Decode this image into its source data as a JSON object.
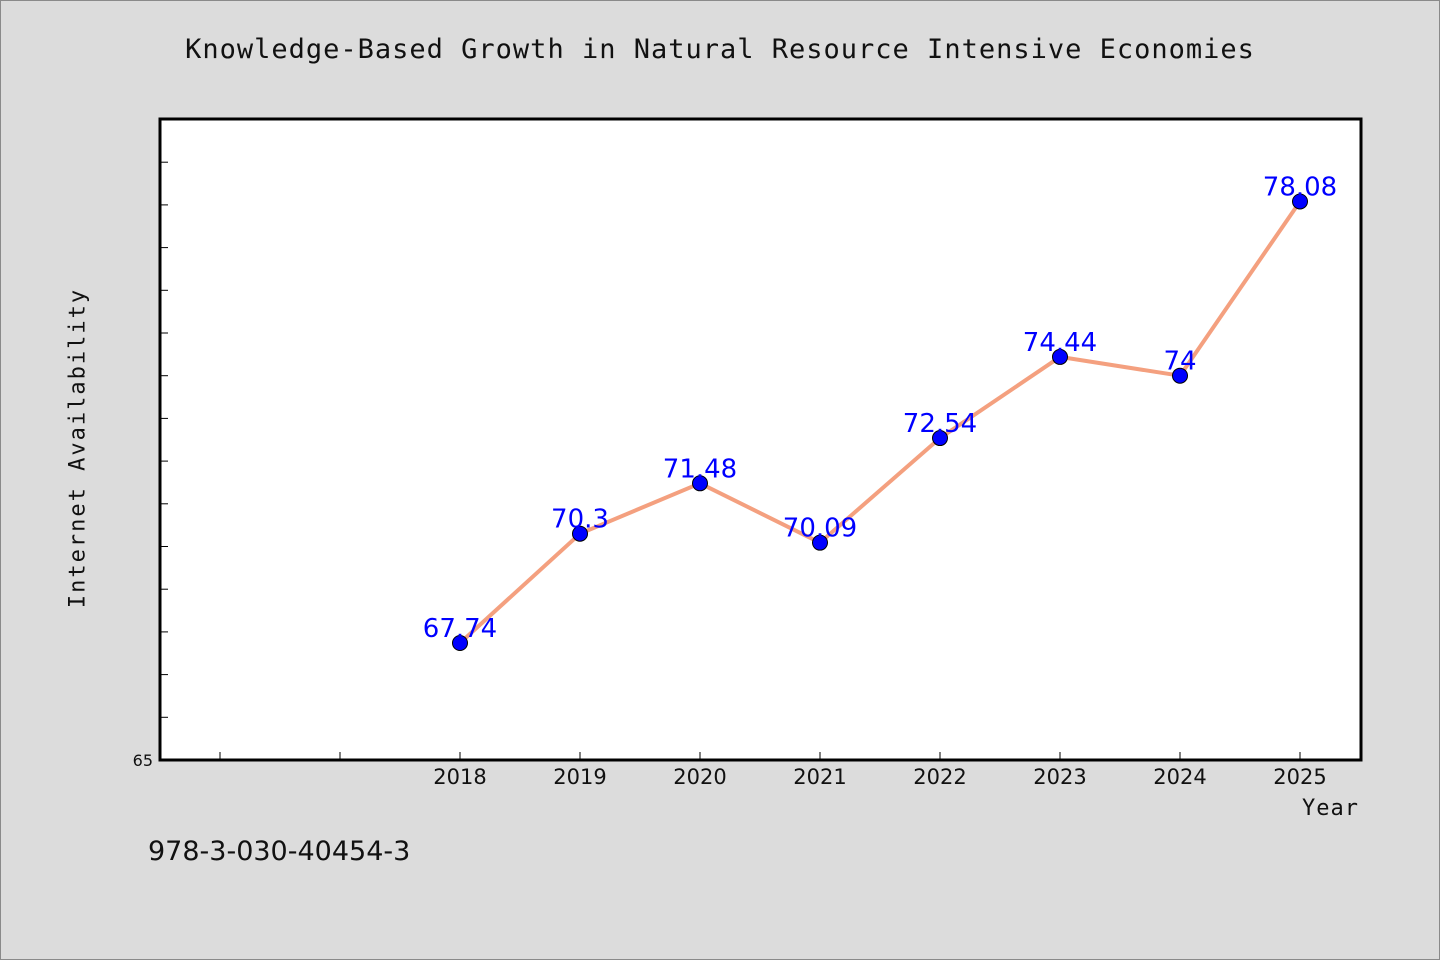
{
  "chart_data": {
    "type": "line",
    "title": "Knowledge-Based Growth in Natural Resource Intensive Economies",
    "xlabel": "Year",
    "ylabel": "Internet Availability",
    "categories": [
      "2018",
      "2019",
      "2020",
      "2021",
      "2022",
      "2023",
      "2024",
      "2025"
    ],
    "series": [
      {
        "values": [
          67.74,
          70.3,
          71.48,
          70.09,
          72.54,
          74.44,
          74,
          78.08
        ]
      }
    ],
    "data_labels": [
      "67.74",
      "70.3",
      "71.48",
      "70.09",
      "72.54",
      "74.44",
      "74",
      "78.08"
    ],
    "y_tick_label_min": "65",
    "ylim": [
      65,
      80
    ],
    "x_start_category_slot": 2,
    "grid": false,
    "legend": "none",
    "colors": {
      "line": "#f4a07f",
      "marker": "#0000ff",
      "label": "#0000ff"
    }
  },
  "footer": "978-3-030-40454-3"
}
